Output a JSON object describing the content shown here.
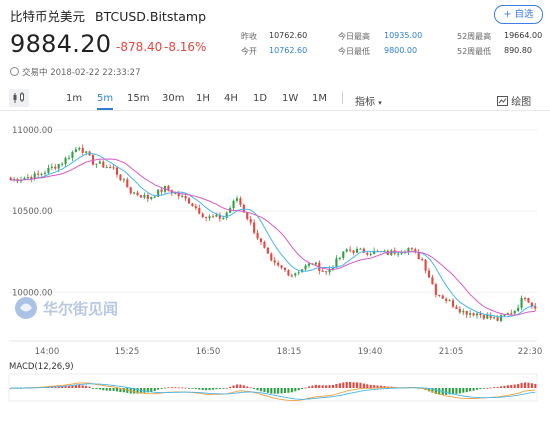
{
  "header": {
    "name": "比特币兑美元",
    "symbol": "BTCUSD.Bitstamp",
    "add_button": "+ 自选",
    "price": "9884.20",
    "change": "-878.40",
    "change_pct": "-8.16%",
    "status_time": "交易中 2018-02-22 22:33:27"
  },
  "stats": [
    {
      "label": "昨收",
      "value": "10762.60",
      "color": "#333333"
    },
    {
      "label": "今开",
      "value": "10762.60",
      "color": "#2f7fd6"
    },
    {
      "label": "今日最高",
      "value": "10935.00",
      "color": "#2f7fd6"
    },
    {
      "label": "今日最低",
      "value": "9800.00",
      "color": "#2f7fd6"
    },
    {
      "label": "52周最高",
      "value": "19664.00",
      "color": "#333333"
    },
    {
      "label": "52周最低",
      "value": "890.80",
      "color": "#333333"
    }
  ],
  "toolbar": {
    "intervals": [
      "1m",
      "5m",
      "15m",
      "30m",
      "1H",
      "4H",
      "1D",
      "1W",
      "1M"
    ],
    "active": "5m",
    "indicators_label": "指标",
    "draw_label": "绘图",
    "chart_icon": "candlestick-icon",
    "draw_icon": "draw-icon"
  },
  "watermark": "华尔街见闻",
  "colors": {
    "up": "#2ea043",
    "down": "#e3473f",
    "accent": "#2f7fd6",
    "ma_short": "#4ab6e8",
    "ma_long": "#d85ac8",
    "macd_line": "#f0a040",
    "signal_line": "#4ab6e8"
  },
  "chart_data": [
    {
      "type": "candlestick",
      "y_ticks": [
        "11000.00",
        "10500.00",
        "10000.00"
      ],
      "ylim": [
        9700,
        11060
      ],
      "x_ticks": [
        "14:00",
        "15:25",
        "16:50",
        "18:15",
        "19:40",
        "21:05",
        "22:30"
      ],
      "anchors": [
        {
          "bar": 0,
          "price": 10690
        },
        {
          "bar": 8,
          "price": 10720
        },
        {
          "bar": 15,
          "price": 10800
        },
        {
          "bar": 20,
          "price": 10900
        },
        {
          "bar": 24,
          "price": 10800
        },
        {
          "bar": 30,
          "price": 10760
        },
        {
          "bar": 35,
          "price": 10620
        },
        {
          "bar": 40,
          "price": 10580
        },
        {
          "bar": 45,
          "price": 10640
        },
        {
          "bar": 52,
          "price": 10560
        },
        {
          "bar": 57,
          "price": 10460
        },
        {
          "bar": 62,
          "price": 10460
        },
        {
          "bar": 66,
          "price": 10580
        },
        {
          "bar": 70,
          "price": 10420
        },
        {
          "bar": 76,
          "price": 10180
        },
        {
          "bar": 82,
          "price": 10110
        },
        {
          "bar": 88,
          "price": 10180
        },
        {
          "bar": 92,
          "price": 10120
        },
        {
          "bar": 98,
          "price": 10260
        },
        {
          "bar": 104,
          "price": 10250
        },
        {
          "bar": 110,
          "price": 10240
        },
        {
          "bar": 116,
          "price": 10270
        },
        {
          "bar": 120,
          "price": 10200
        },
        {
          "bar": 124,
          "price": 10000
        },
        {
          "bar": 128,
          "price": 9940
        },
        {
          "bar": 132,
          "price": 9880
        },
        {
          "bar": 136,
          "price": 9870
        },
        {
          "bar": 142,
          "price": 9830
        },
        {
          "bar": 147,
          "price": 9890
        },
        {
          "bar": 150,
          "price": 9980
        },
        {
          "bar": 153,
          "price": 9900
        }
      ],
      "series": [
        {
          "name": "",
          "kind": "ma-short"
        },
        {
          "name": "",
          "kind": "ma-long"
        }
      ]
    },
    {
      "type": "macd",
      "title": "MACD(12,26,9)",
      "ylim": [
        -120,
        120
      ]
    }
  ]
}
